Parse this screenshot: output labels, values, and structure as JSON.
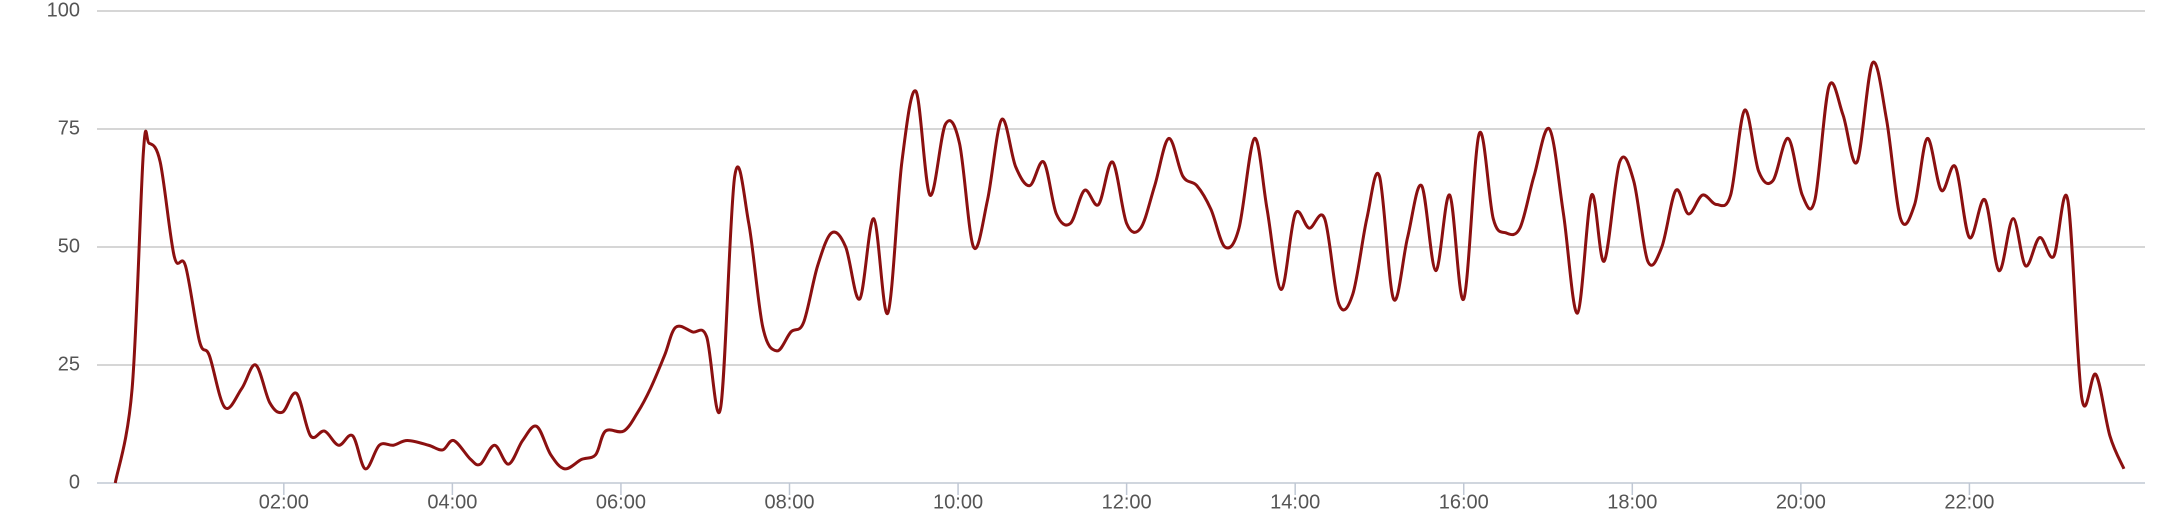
{
  "chart_data": {
    "type": "line",
    "x": [
      0,
      12,
      20,
      24,
      32,
      42,
      50,
      60,
      67,
      78,
      90,
      100,
      110,
      119,
      129,
      139,
      149,
      159,
      169,
      178,
      188,
      198,
      208,
      223,
      233,
      241,
      253,
      260,
      270,
      280,
      290,
      300,
      310,
      320,
      332,
      342,
      349,
      362,
      372,
      381,
      391,
      399,
      411,
      421,
      431,
      441,
      451,
      461,
      471,
      481,
      490,
      500,
      510,
      520,
      530,
      540,
      550,
      560,
      570,
      580,
      591,
      601,
      611,
      621,
      631,
      641,
      651,
      661,
      670,
      680,
      690,
      700,
      710,
      720,
      730,
      740,
      750,
      760,
      770,
      780,
      790,
      800,
      811,
      820,
      830,
      840,
      850,
      861,
      871,
      881,
      891,
      900,
      910,
      920,
      930,
      940,
      950,
      960,
      971,
      981,
      990,
      1000,
      1010,
      1021,
      1031,
      1041,
      1051,
      1060,
      1071,
      1081,
      1091,
      1101,
      1111,
      1120,
      1130,
      1140,
      1150,
      1160,
      1170,
      1180,
      1191,
      1201,
      1210,
      1220,
      1230,
      1240,
      1251,
      1261,
      1271,
      1281,
      1290,
      1300,
      1310,
      1320,
      1331,
      1341,
      1351,
      1360,
      1370,
      1380,
      1390,
      1400,
      1410,
      1420,
      1430
    ],
    "series": [
      {
        "color": "#8b1010",
        "values": [
          0,
          20,
          70,
          72,
          68,
          48,
          46,
          30,
          27,
          16,
          20,
          25,
          17,
          15,
          19,
          10,
          11,
          8,
          10,
          3,
          8,
          8,
          9,
          8,
          7,
          9,
          5,
          4,
          8,
          4,
          9,
          12,
          6,
          3,
          5,
          6,
          11,
          11,
          15,
          20,
          27,
          33,
          32,
          31,
          16,
          65,
          55,
          33,
          28,
          32,
          34,
          46,
          53,
          50,
          39,
          56,
          36,
          68,
          83,
          61,
          76,
          72,
          50,
          60,
          77,
          67,
          63,
          68,
          57,
          55,
          62,
          59,
          68,
          55,
          54,
          63,
          73,
          65,
          63,
          58,
          50,
          54,
          73,
          58,
          41,
          57,
          54,
          56,
          38,
          40,
          56,
          65,
          39,
          52,
          63,
          45,
          61,
          39,
          74,
          56,
          53,
          54,
          65,
          75,
          57,
          36,
          61,
          47,
          68,
          64,
          47,
          50,
          62,
          57,
          61,
          59,
          61,
          79,
          66,
          64,
          73,
          61,
          60,
          84,
          78,
          68,
          89,
          77,
          56,
          59,
          73,
          62,
          67,
          52,
          60,
          45,
          56,
          46,
          52,
          48,
          60,
          18,
          23,
          10,
          3
        ]
      }
    ],
    "xlim": [
      -13,
      1445
    ],
    "ylim": [
      0,
      100
    ],
    "xticks": [
      {
        "value": 120,
        "label": "02:00"
      },
      {
        "value": 240,
        "label": "04:00"
      },
      {
        "value": 360,
        "label": "06:00"
      },
      {
        "value": 480,
        "label": "08:00"
      },
      {
        "value": 600,
        "label": "10:00"
      },
      {
        "value": 720,
        "label": "12:00"
      },
      {
        "value": 840,
        "label": "14:00"
      },
      {
        "value": 960,
        "label": "16:00"
      },
      {
        "value": 1080,
        "label": "18:00"
      },
      {
        "value": 1200,
        "label": "20:00"
      },
      {
        "value": 1320,
        "label": "22:00"
      }
    ],
    "yticks": [
      0,
      25,
      50,
      75,
      100
    ],
    "grid": true
  }
}
